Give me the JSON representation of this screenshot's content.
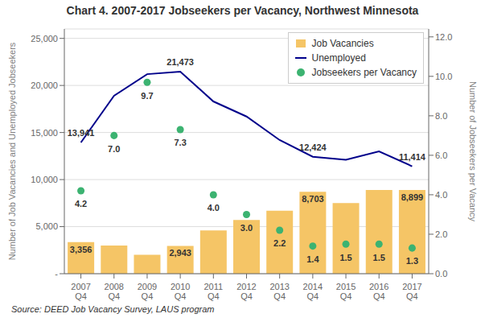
{
  "chart_data": {
    "type": "combo",
    "title": "Chart 4. 2007-2017 Jobseekers per Vacancy, Northwest Minnesota",
    "source": "Source: DEED Job Vacancy Survey, LAUS program",
    "ylabel": "Number of Job Vacancies and Unemployed Jobseekers",
    "y2label": "Number of Jobseekers per Vacancy",
    "categories": [
      "2007\nQ4",
      "2008\nQ4",
      "2009\nQ4",
      "2010\nQ4",
      "2011\nQ4",
      "2012\nQ4",
      "2013\nQ4",
      "2014\nQ4",
      "2015\nQ4",
      "2016\nQ4",
      "2017\nQ4"
    ],
    "series": [
      {
        "name": "Job Vacancies",
        "type": "bar",
        "color": "#F5C566",
        "values": [
          3356,
          3000,
          2000,
          2943,
          4600,
          5700,
          6700,
          8703,
          7500,
          8900,
          8899
        ],
        "value_labels": [
          "3,356",
          null,
          null,
          "2,943",
          null,
          null,
          null,
          "8,703",
          null,
          null,
          "8,899"
        ],
        "data_labels": true
      },
      {
        "name": "Unemployed",
        "type": "line",
        "color": "#00008B",
        "marker": "none",
        "values": [
          13941,
          18900,
          21200,
          21473,
          18300,
          16700,
          14200,
          12424,
          12100,
          13000,
          11414
        ],
        "value_labels": [
          "13,941",
          null,
          null,
          "21,473",
          null,
          null,
          null,
          "12,424",
          null,
          null,
          "11,414"
        ],
        "data_labels": true
      },
      {
        "name": "Jobseekers per Vacancy",
        "type": "scatter",
        "axis": "y2",
        "color": "#3CB371",
        "marker": "circle",
        "values": [
          4.2,
          7.0,
          9.7,
          7.3,
          4.0,
          3.0,
          2.2,
          1.4,
          1.5,
          1.5,
          1.3
        ],
        "value_labels": [
          "4.2",
          "7.0",
          "9.7",
          "7.3",
          "4.0",
          "3.0",
          "2.2",
          "1.4",
          "1.5",
          "1.5",
          "1.3"
        ],
        "data_labels": true
      }
    ],
    "ylim": [
      0,
      26000
    ],
    "yticks": [
      {
        "value": 0,
        "label": "-"
      },
      {
        "value": 5000,
        "label": "5,000"
      },
      {
        "value": 10000,
        "label": "10,000"
      },
      {
        "value": 15000,
        "label": "15,000"
      },
      {
        "value": 20000,
        "label": "20,000"
      },
      {
        "value": 25000,
        "label": "25,000"
      }
    ],
    "y2lim": [
      0,
      12.4
    ],
    "y2ticks": [
      {
        "value": 0,
        "label": "0.0"
      },
      {
        "value": 2,
        "label": "2.0"
      },
      {
        "value": 4,
        "label": "4.0"
      },
      {
        "value": 6,
        "label": "6.0"
      },
      {
        "value": 8,
        "label": "8.0"
      },
      {
        "value": 10,
        "label": "10.0"
      },
      {
        "value": 12,
        "label": "12.0"
      }
    ],
    "grid": true,
    "legend": "upper right"
  }
}
